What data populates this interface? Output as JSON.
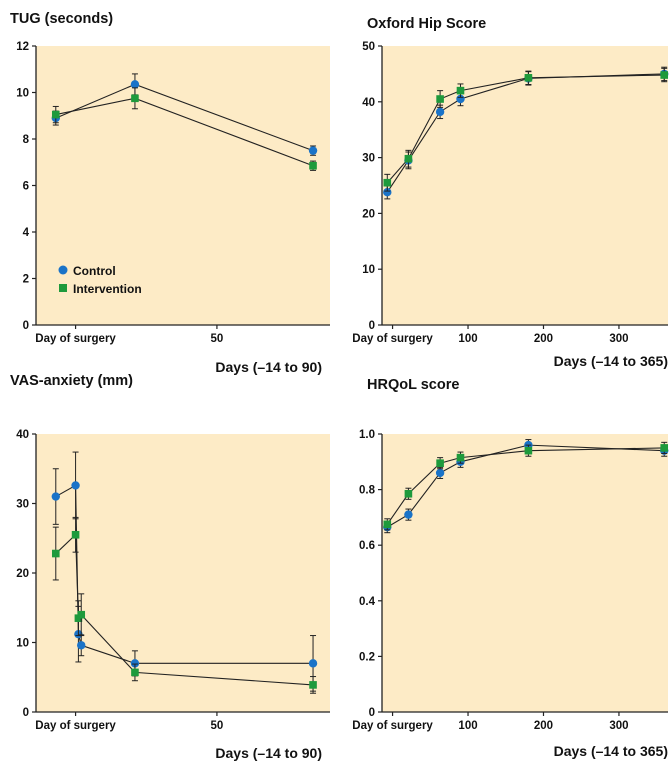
{
  "colors": {
    "plot_bg": "#fdebc6",
    "control": "#1a73c8",
    "intervention": "#1e9a3c",
    "line": "#222222",
    "axis": "#222222"
  },
  "legend": {
    "control": "Control",
    "intervention": "Intervention"
  },
  "chart_data": [
    {
      "type": "line",
      "title": "TUG (seconds)",
      "xlabel": "Days (–14 to 90)",
      "xlim": [
        -14,
        90
      ],
      "ylim": [
        0,
        12
      ],
      "yticks": [
        0,
        2,
        4,
        6,
        8,
        10,
        12
      ],
      "xticks": [
        {
          "value": 0,
          "label": "Day of surgery"
        },
        {
          "value": 50,
          "label": "50"
        }
      ],
      "legend_position": "bottom-left",
      "grid": false,
      "series": [
        {
          "name": "Control",
          "x": [
            -7,
            21,
            84
          ],
          "y": [
            8.9,
            10.35,
            7.5
          ],
          "err": [
            0.3,
            0.45,
            0.2
          ]
        },
        {
          "name": "Intervention",
          "x": [
            -7,
            21,
            84
          ],
          "y": [
            9.05,
            9.75,
            6.85
          ],
          "err": [
            0.35,
            0.45,
            0.2
          ]
        }
      ]
    },
    {
      "type": "line",
      "title": "Oxford Hip Score",
      "xlabel": "Days (–14 to 365)",
      "xlim": [
        -14,
        365
      ],
      "ylim": [
        0,
        50
      ],
      "yticks": [
        0,
        10,
        20,
        30,
        40,
        50
      ],
      "xticks": [
        {
          "value": 0,
          "label": "Day of surgery"
        },
        {
          "value": 100,
          "label": "100"
        },
        {
          "value": 200,
          "label": "200"
        },
        {
          "value": 300,
          "label": "300"
        }
      ],
      "grid": false,
      "series": [
        {
          "name": "Control",
          "x": [
            -7,
            21,
            63,
            90,
            180,
            360
          ],
          "y": [
            23.8,
            29.5,
            38.2,
            40.5,
            44.2,
            45.0
          ],
          "err": [
            1.2,
            1.5,
            1.2,
            1.2,
            1.2,
            1.2
          ]
        },
        {
          "name": "Intervention",
          "x": [
            -7,
            21,
            63,
            90,
            180,
            360
          ],
          "y": [
            25.5,
            29.8,
            40.5,
            42.0,
            44.3,
            44.8
          ],
          "err": [
            1.5,
            1.5,
            1.5,
            1.2,
            1.2,
            1.2
          ]
        }
      ]
    },
    {
      "type": "line",
      "title": "VAS-anxiety (mm)",
      "xlabel": "Days (–14 to 90)",
      "xlim": [
        -14,
        90
      ],
      "ylim": [
        0,
        40
      ],
      "yticks": [
        0,
        10,
        20,
        30,
        40
      ],
      "xticks": [
        {
          "value": 0,
          "label": "Day of surgery"
        },
        {
          "value": 50,
          "label": "50"
        }
      ],
      "grid": false,
      "series": [
        {
          "name": "Control",
          "x": [
            -7,
            0,
            1,
            2,
            21,
            84
          ],
          "y": [
            31.0,
            32.6,
            11.2,
            9.6,
            7.0,
            7.0
          ],
          "err": [
            4.0,
            4.8,
            4.0,
            1.5,
            1.8,
            4.0
          ]
        },
        {
          "name": "Intervention",
          "x": [
            -7,
            0,
            1,
            2,
            21,
            84
          ],
          "y": [
            22.8,
            25.5,
            13.5,
            14.0,
            5.7,
            3.9
          ],
          "err": [
            3.8,
            2.5,
            2.5,
            3.0,
            1.2,
            1.2
          ]
        }
      ]
    },
    {
      "type": "line",
      "title": "HRQoL score",
      "xlabel": "Days (–14 to 365)",
      "xlim": [
        -14,
        365
      ],
      "ylim": [
        0,
        1.0
      ],
      "yticks": [
        0,
        0.2,
        0.4,
        0.6,
        0.8,
        1.0
      ],
      "ytick_labels": [
        "0",
        "0.2",
        "0.4",
        "0.6",
        "0.8",
        "1.0"
      ],
      "xticks": [
        {
          "value": 0,
          "label": "Day of surgery"
        },
        {
          "value": 100,
          "label": "100"
        },
        {
          "value": 200,
          "label": "200"
        },
        {
          "value": 300,
          "label": "300"
        }
      ],
      "grid": false,
      "series": [
        {
          "name": "Control",
          "x": [
            -7,
            21,
            63,
            90,
            180,
            360
          ],
          "y": [
            0.665,
            0.71,
            0.86,
            0.9,
            0.96,
            0.94
          ],
          "err": [
            0.02,
            0.02,
            0.02,
            0.02,
            0.02,
            0.02
          ]
        },
        {
          "name": "Intervention",
          "x": [
            -7,
            21,
            63,
            90,
            180,
            360
          ],
          "y": [
            0.675,
            0.785,
            0.895,
            0.915,
            0.94,
            0.95
          ],
          "err": [
            0.02,
            0.02,
            0.02,
            0.02,
            0.02,
            0.02
          ]
        }
      ]
    }
  ]
}
